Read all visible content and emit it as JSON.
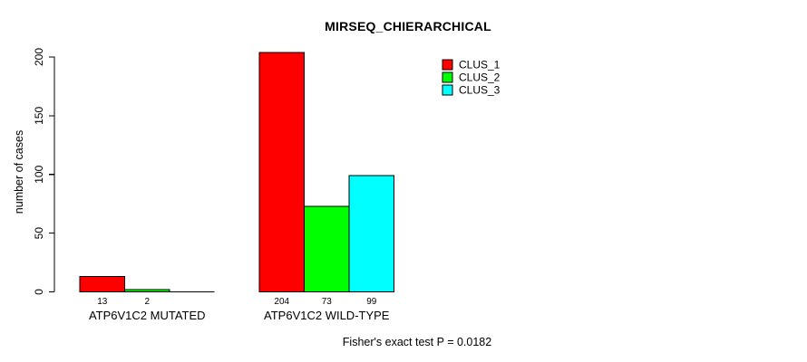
{
  "chart_data": {
    "type": "bar",
    "grouped": true,
    "title": "MIRSEQ_CHIERARCHICAL",
    "ylabel": "number of cases",
    "xlabel": "",
    "ylim": [
      0,
      200
    ],
    "yticks": [
      "0",
      "50",
      "100",
      "150",
      "200"
    ],
    "grid": false,
    "categories": [
      "ATP6V1C2 MUTATED",
      "ATP6V1C2 WILD-TYPE"
    ],
    "series": [
      {
        "name": "CLUS_1",
        "color": "#ff0000",
        "values": [
          13,
          204
        ]
      },
      {
        "name": "CLUS_2",
        "color": "#00ff00",
        "values": [
          2,
          73
        ]
      },
      {
        "name": "CLUS_3",
        "color": "#00ffff",
        "values": [
          0,
          99
        ]
      }
    ],
    "value_labels": [
      [
        "13",
        "2",
        ""
      ],
      [
        "204",
        "73",
        "99"
      ]
    ],
    "legend": {
      "position": "top-right",
      "entries": [
        "CLUS_1",
        "CLUS_2",
        "CLUS_3"
      ]
    },
    "annotation": "Fisher's exact test P = 0.0182"
  }
}
